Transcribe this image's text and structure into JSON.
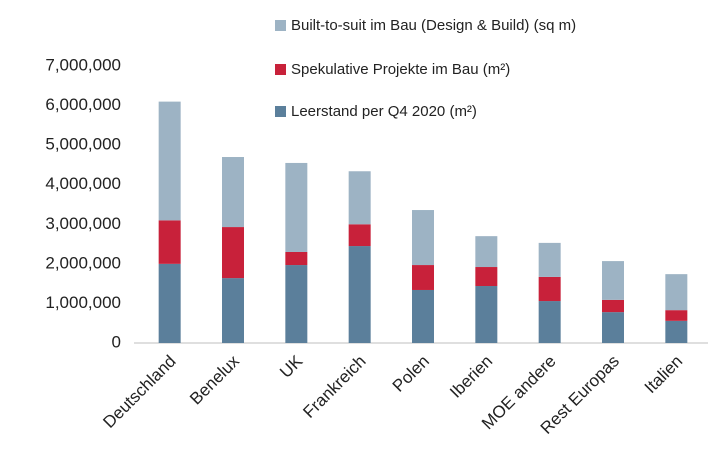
{
  "chart_data": {
    "type": "stacked_bar",
    "categories": [
      "Deutschland",
      "Benelux",
      "UK",
      "Frankreich",
      "Polen",
      "Iberien",
      "MOE andere",
      "Rest Europas",
      "Italien"
    ],
    "series": [
      {
        "name": "Leerstand per Q4 2020 (m²)",
        "color": "#5b7f9b",
        "values": [
          2000000,
          1640000,
          1970000,
          2450000,
          1340000,
          1440000,
          1060000,
          780000,
          560000
        ]
      },
      {
        "name": "Spekulative Projekte im Bau (m²)",
        "color": "#c8213a",
        "values": [
          1100000,
          1290000,
          330000,
          550000,
          630000,
          480000,
          610000,
          310000,
          270000
        ]
      },
      {
        "name": "Built-to-suit im Bau (Design & Build) (sq m)",
        "color": "#9db3c4",
        "values": [
          3000000,
          1770000,
          2250000,
          1340000,
          1390000,
          780000,
          860000,
          980000,
          910000
        ]
      }
    ],
    "ylim": [
      0,
      7000000
    ],
    "yticks": [
      0,
      {
        "value": 1000000,
        "label": "1,000,000"
      },
      {
        "value": 2000000,
        "label": "2,000,000"
      },
      {
        "value": 3000000,
        "label": "3,000,000"
      },
      {
        "value": 4000000,
        "label": "4,000,000"
      },
      {
        "value": 5000000,
        "label": "5,000,000"
      },
      {
        "value": 6000000,
        "label": "6,000,000"
      },
      {
        "value": 7000000,
        "label": "7,000,000"
      }
    ]
  }
}
